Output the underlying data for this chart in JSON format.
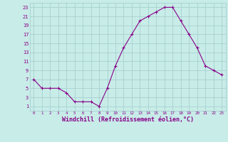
{
  "x": [
    0,
    1,
    2,
    3,
    4,
    5,
    6,
    7,
    8,
    9,
    10,
    11,
    12,
    13,
    14,
    15,
    16,
    17,
    18,
    19,
    20,
    21,
    22,
    23
  ],
  "y": [
    7,
    5,
    5,
    5,
    4,
    2,
    2,
    2,
    1,
    5,
    10,
    14,
    17,
    20,
    21,
    22,
    23,
    23,
    20,
    17,
    14,
    10,
    9,
    8
  ],
  "line_color": "#880088",
  "marker": "+",
  "bg_color": "#C8ECE8",
  "grid_color": "#A0CCCC",
  "xlabel": "Windchill (Refroidissement éolien,°C)",
  "xlabel_color": "#880088",
  "ylabel_ticks": [
    1,
    3,
    5,
    7,
    9,
    11,
    13,
    15,
    17,
    19,
    21,
    23
  ],
  "xtick_labels": [
    "0",
    "1",
    "2",
    "3",
    "4",
    "5",
    "6",
    "7",
    "8",
    "9",
    "10",
    "11",
    "12",
    "13",
    "14",
    "15",
    "16",
    "17",
    "18",
    "19",
    "20",
    "21",
    "22",
    "23"
  ],
  "ylim": [
    0,
    24
  ],
  "xlim": [
    -0.5,
    23.5
  ],
  "tick_color": "#880088",
  "font_family": "monospace"
}
